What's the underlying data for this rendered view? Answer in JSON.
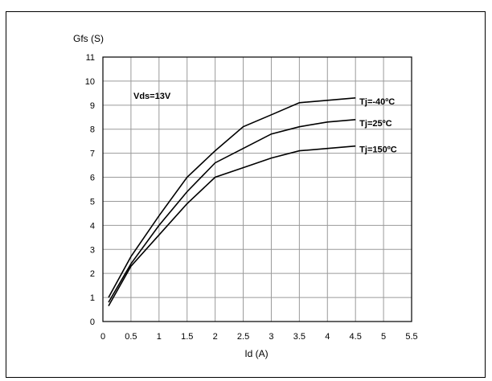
{
  "chart_data": {
    "type": "line",
    "ylabel": "Gfs (S)",
    "xlabel": "Id (A)",
    "xlim": [
      0,
      5.5
    ],
    "ylim": [
      0,
      11
    ],
    "xticks": [
      "0",
      "0.5",
      "1",
      "1.5",
      "2",
      "2.5",
      "3",
      "3.5",
      "4",
      "4.5",
      "5",
      "5.5"
    ],
    "yticks": [
      "0",
      "1",
      "2",
      "3",
      "4",
      "5",
      "6",
      "7",
      "8",
      "9",
      "10",
      "11"
    ],
    "grid": true,
    "annotation": "Vds=13V",
    "series": [
      {
        "name": "Tj=-40ºC",
        "x": [
          0.1,
          0.5,
          1.0,
          1.5,
          2.0,
          2.5,
          3.0,
          3.5,
          4.0,
          4.5
        ],
        "y": [
          1.0,
          2.7,
          4.4,
          6.0,
          7.1,
          8.1,
          8.6,
          9.1,
          9.2,
          9.3
        ]
      },
      {
        "name": "Tj=25ºC",
        "x": [
          0.1,
          0.5,
          1.0,
          1.5,
          2.0,
          2.5,
          3.0,
          3.5,
          4.0,
          4.5
        ],
        "y": [
          0.8,
          2.4,
          4.0,
          5.4,
          6.6,
          7.2,
          7.8,
          8.1,
          8.3,
          8.4
        ]
      },
      {
        "name": "Tj=150ºC",
        "x": [
          0.1,
          0.5,
          1.0,
          1.5,
          2.0,
          2.5,
          3.0,
          3.5,
          4.0,
          4.5
        ],
        "y": [
          0.65,
          2.3,
          3.6,
          4.9,
          6.0,
          6.4,
          6.8,
          7.1,
          7.2,
          7.3
        ]
      }
    ]
  }
}
